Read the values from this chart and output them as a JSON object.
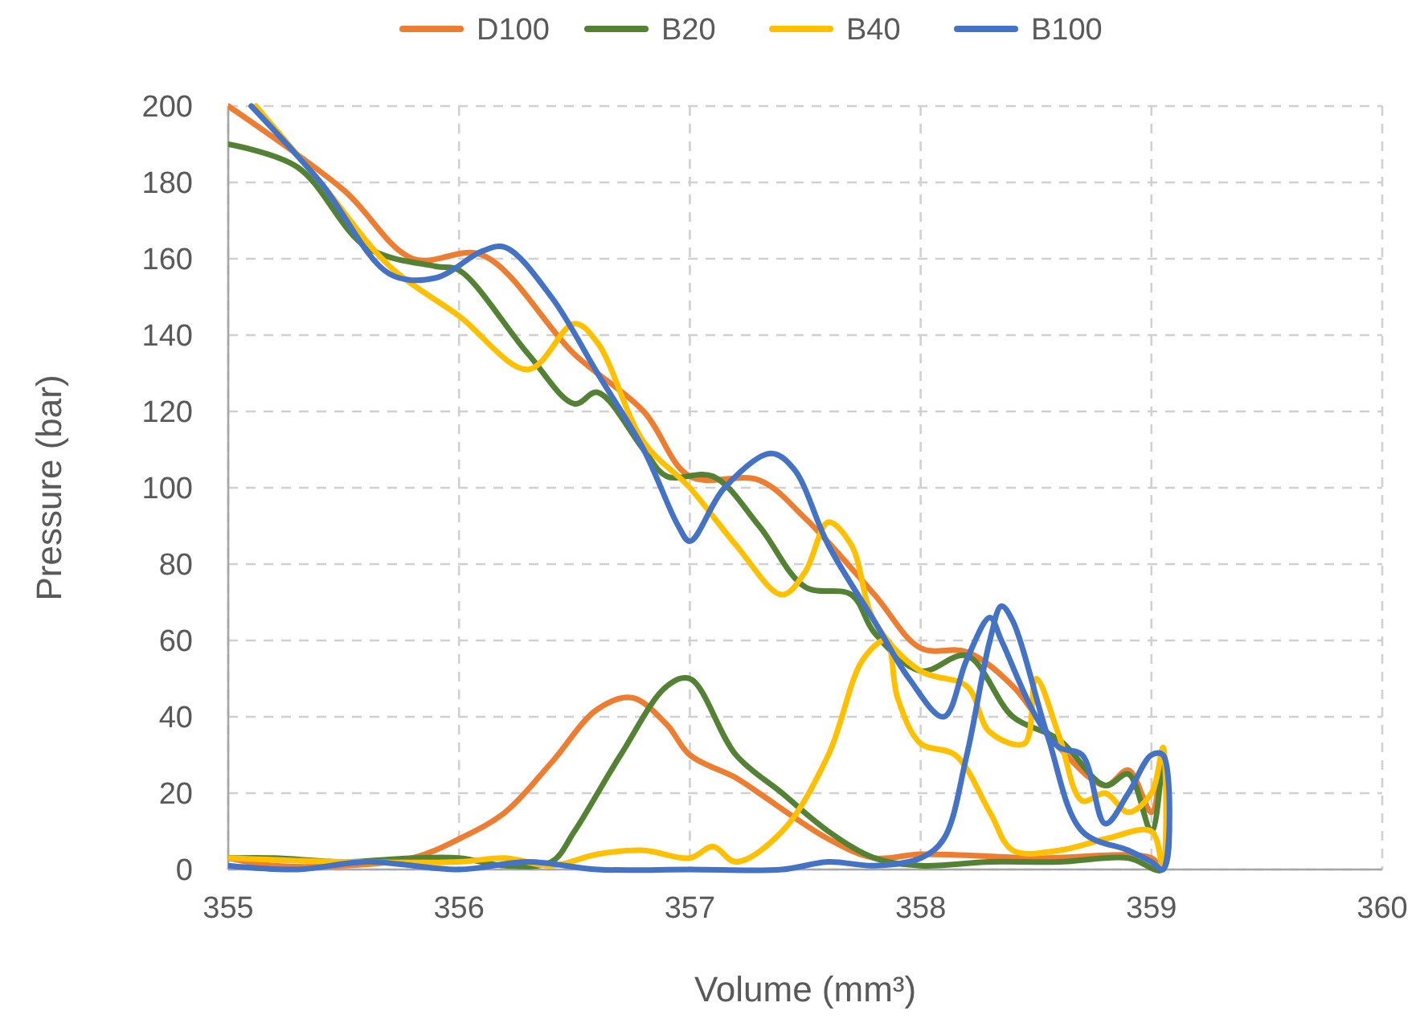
{
  "chart_data": {
    "type": "line",
    "xlabel": "Volume (mm³)",
    "ylabel": "Pressure (bar)",
    "xlim": [
      355,
      360
    ],
    "ylim": [
      0,
      200
    ],
    "xticks": [
      355,
      356,
      357,
      358,
      359,
      360
    ],
    "yticks": [
      0,
      20,
      40,
      60,
      80,
      100,
      120,
      140,
      160,
      180,
      200
    ],
    "grid": true,
    "legend": "top",
    "marker": "none",
    "line_style": "solid",
    "series": [
      {
        "name": "D100",
        "color": "#ed7d31",
        "x": [
          355,
          355.5,
          355.8,
          356.1,
          356.5,
          356.8,
          357,
          357.3,
          357.5,
          357.8,
          358,
          358.2,
          358.4,
          358.6,
          358.8,
          358.9,
          359,
          359.05,
          359.05,
          359,
          358.5,
          358,
          357.8,
          357.6,
          357.3,
          357.2,
          357,
          356.9,
          356.75,
          356.6,
          356.4,
          356.2,
          356,
          355.8,
          355.5,
          355.2,
          355
        ],
        "values": [
          200,
          178,
          160,
          161,
          135,
          120,
          103,
          102,
          92,
          72,
          58,
          57,
          48,
          32,
          22,
          26,
          15,
          30,
          0,
          3,
          3,
          4,
          3,
          8,
          20,
          24,
          30,
          38,
          45,
          42,
          28,
          15,
          8,
          3,
          1,
          1,
          3
        ]
      },
      {
        "name": "B20",
        "color": "#548235",
        "x": [
          355,
          355.3,
          355.6,
          355.9,
          356,
          356.3,
          356.5,
          356.6,
          356.8,
          356.9,
          357.1,
          357.3,
          357.5,
          357.7,
          357.8,
          358,
          358.2,
          358.4,
          358.6,
          358.8,
          358.9,
          359,
          359.05,
          359.05,
          358.9,
          358.6,
          358.3,
          358,
          357.8,
          357.6,
          357.4,
          357.2,
          357,
          356.9,
          356.7,
          356.5,
          356.4,
          356.2,
          356,
          355.8,
          355.5,
          355.2,
          355
        ],
        "values": [
          190,
          184,
          163,
          158,
          157,
          135,
          122,
          125,
          110,
          103,
          103,
          90,
          74,
          72,
          62,
          52,
          56,
          40,
          34,
          22,
          25,
          10,
          28,
          0,
          3,
          2,
          2,
          1,
          3,
          10,
          20,
          30,
          50,
          48,
          30,
          10,
          2,
          1,
          3,
          3,
          2,
          3,
          3
        ]
      },
      {
        "name": "B40",
        "color": "#ffc000",
        "x": [
          355.12,
          355.4,
          355.7,
          356,
          356.3,
          356.5,
          356.6,
          356.8,
          357,
          357.2,
          357.4,
          357.5,
          357.6,
          357.7,
          357.8,
          358,
          358.2,
          358.3,
          358.45,
          358.5,
          358.6,
          358.7,
          358.8,
          358.9,
          359,
          359.05,
          359.05,
          359,
          358.8,
          358.6,
          358.4,
          358.3,
          358.15,
          358,
          357.9,
          357.85,
          357.75,
          357.6,
          357.4,
          357.2,
          357.1,
          357,
          356.8,
          356.6,
          356.4,
          356.2,
          356,
          355.5,
          355
        ],
        "values": [
          200,
          180,
          158,
          145,
          131,
          143,
          138,
          112,
          100,
          85,
          72,
          78,
          91,
          85,
          65,
          52,
          48,
          36,
          33,
          50,
          35,
          18,
          20,
          15,
          20,
          32,
          0,
          10,
          8,
          5,
          5,
          15,
          30,
          33,
          45,
          60,
          55,
          30,
          10,
          2,
          6,
          3,
          5,
          4,
          1,
          3,
          2,
          2,
          3
        ]
      },
      {
        "name": "B100",
        "color": "#4472c4",
        "x": [
          355.1,
          355.4,
          355.7,
          355.9,
          356.1,
          356.2,
          356.4,
          356.6,
          356.8,
          356.95,
          357,
          357.15,
          357.35,
          357.45,
          357.6,
          357.8,
          357.95,
          358.1,
          358.2,
          358.3,
          358.35,
          358.5,
          358.6,
          358.7,
          358.8,
          358.9,
          359,
          359.05,
          359.05,
          359,
          358.9,
          358.7,
          358.55,
          358.4,
          358.35,
          358.3,
          358.2,
          358.1,
          358,
          357.8,
          357.6,
          357.4,
          357,
          356.6,
          356.3,
          356,
          355.6,
          355.3,
          355
        ],
        "values": [
          200,
          180,
          156,
          155,
          162,
          163,
          150,
          130,
          110,
          90,
          86,
          100,
          109,
          105,
          85,
          65,
          50,
          40,
          55,
          66,
          60,
          40,
          32,
          30,
          12,
          20,
          30,
          30,
          0,
          2,
          5,
          10,
          35,
          65,
          69,
          60,
          30,
          8,
          3,
          1,
          2,
          0,
          0,
          0,
          2,
          0,
          2,
          0,
          1
        ]
      }
    ]
  }
}
